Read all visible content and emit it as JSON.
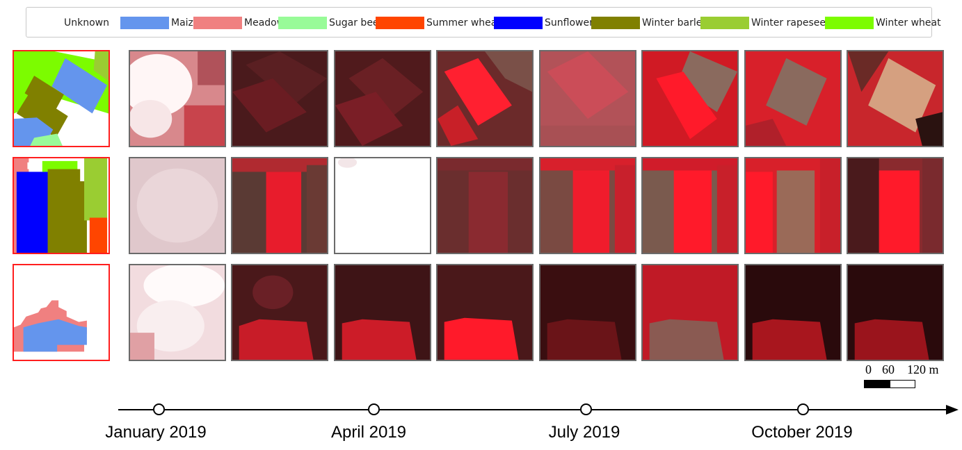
{
  "legend": {
    "items": [
      {
        "label": "Unknown",
        "color": null
      },
      {
        "label": "Maize",
        "color": "#6495ed"
      },
      {
        "label": "Meadow",
        "color": "#f08080"
      },
      {
        "label": "Sugar beet",
        "color": "#98fb98"
      },
      {
        "label": "Summer wheat",
        "color": "#ff4500"
      },
      {
        "label": "Sunflowers",
        "color": "#0000ff"
      },
      {
        "label": "Winter barley",
        "color": "#808000"
      },
      {
        "label": "Winter rapeseed",
        "color": "#9acd32"
      },
      {
        "label": "Winter wheat",
        "color": "#7cfc00"
      }
    ]
  },
  "scale_bar": {
    "labels": [
      "0",
      "60",
      "120 m"
    ]
  },
  "timeline": {
    "labels": [
      "January 2019",
      "April 2019",
      "July 2019",
      "October 2019"
    ]
  },
  "rows": [
    {
      "mask": "barley-maize-field",
      "tiles": [
        "cloudy",
        "dark",
        "dark",
        "bright-field",
        "hazy",
        "bright-field-brown",
        "brown-field",
        "tan-field"
      ]
    },
    {
      "mask": "sunflower-barley-strips",
      "tiles": [
        "haze",
        "strips-red",
        "white",
        "strips-dark",
        "strips-red",
        "strips-red",
        "strips-tan",
        "strips-bright"
      ]
    },
    {
      "mask": "maize-meadow-blob",
      "tiles": [
        "cloudy",
        "blob-dark",
        "blob-dark",
        "blob-bright",
        "blob-deep",
        "blob-gray",
        "blob-deep",
        "blob-deep"
      ]
    }
  ]
}
